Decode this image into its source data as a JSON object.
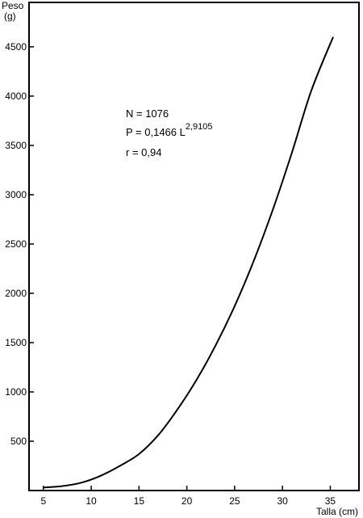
{
  "chart_data": {
    "type": "line",
    "title": "",
    "xlabel": "Talla (cm)",
    "ylabel_line1": "Peso",
    "ylabel_line2": "(g)",
    "xlim": [
      3.5,
      38
    ],
    "ylim": [
      0,
      4950
    ],
    "xticks": [
      5,
      10,
      15,
      20,
      25,
      30,
      35
    ],
    "xtick_labels": [
      "5",
      "10",
      "15",
      "20",
      "25",
      "30",
      "35"
    ],
    "yticks": [
      500,
      1000,
      1500,
      2000,
      2500,
      3000,
      3500,
      4000,
      4500
    ],
    "ytick_labels": [
      "500",
      "1000",
      "1500",
      "2000",
      "2500",
      "3000",
      "3500",
      "4000",
      "4500"
    ],
    "grid": false,
    "series": [
      {
        "x": [
          5,
          7,
          9,
          11,
          13,
          15,
          17,
          19,
          21,
          23,
          25,
          27,
          29,
          31,
          33,
          35.3
        ],
        "y": [
          30,
          45,
          80,
          150,
          250,
          370,
          560,
          820,
          1120,
          1470,
          1870,
          2330,
          2850,
          3430,
          4050,
          4600
        ]
      }
    ],
    "annotations": {
      "n": "N = 1076",
      "equation_base": "P = 0,1466  L",
      "equation_exponent": "2,9105",
      "r": "r = 0,94"
    }
  }
}
